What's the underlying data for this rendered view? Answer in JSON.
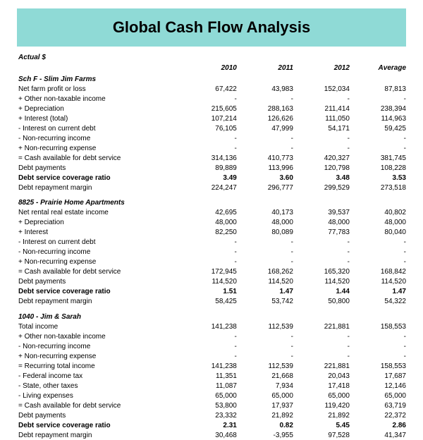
{
  "title": "Global  Cash Flow Analysis",
  "actual_label": "Actual $",
  "banner_bg": "#8fdad6",
  "columns": [
    "2010",
    "2011",
    "2012",
    "Average"
  ],
  "sections": [
    {
      "header": "Sch F - Slim Jim Farms",
      "rows": [
        {
          "label": "Net farm profit or loss",
          "vals": [
            "67,422",
            "43,983",
            "152,034",
            "87,813"
          ]
        },
        {
          "label": "+ Other non-taxable income",
          "vals": [
            "-",
            "-",
            "-",
            "-"
          ]
        },
        {
          "label": "+ Depreciation",
          "vals": [
            "215,605",
            "288,163",
            "211,414",
            "238,394"
          ]
        },
        {
          "label": "+ Interest (total)",
          "vals": [
            "107,214",
            "126,626",
            "111,050",
            "114,963"
          ]
        },
        {
          "label": "- Interest on current debt",
          "vals": [
            "76,105",
            "47,999",
            "54,171",
            "59,425"
          ]
        },
        {
          "label": "- Non-recurring income",
          "vals": [
            "-",
            "-",
            "-",
            "-"
          ]
        },
        {
          "label": "+ Non-recurring expense",
          "vals": [
            "-",
            "-",
            "-",
            "-"
          ]
        },
        {
          "label": "= Cash available for debt service",
          "vals": [
            "314,136",
            "410,773",
            "420,327",
            "381,745"
          ]
        },
        {
          "label": "Debt payments",
          "vals": [
            "89,889",
            "113,996",
            "120,798",
            "108,228"
          ]
        },
        {
          "label": "Debt service coverage ratio",
          "vals": [
            "3.49",
            "3.60",
            "3.48",
            "3.53"
          ],
          "bold": true
        },
        {
          "label": "Debt repayment margin",
          "vals": [
            "224,247",
            "296,777",
            "299,529",
            "273,518"
          ]
        }
      ]
    },
    {
      "header": "8825 - Prairie Home Apartments",
      "rows": [
        {
          "label": "Net rental real estate income",
          "vals": [
            "42,695",
            "40,173",
            "39,537",
            "40,802"
          ]
        },
        {
          "label": "+ Depreciation",
          "vals": [
            "48,000",
            "48,000",
            "48,000",
            "48,000"
          ]
        },
        {
          "label": "+ Interest",
          "vals": [
            "82,250",
            "80,089",
            "77,783",
            "80,040"
          ]
        },
        {
          "label": "- Interest on current debt",
          "vals": [
            "-",
            "-",
            "-",
            "-"
          ]
        },
        {
          "label": "- Non-recurring income",
          "vals": [
            "-",
            "-",
            "-",
            "-"
          ]
        },
        {
          "label": "+ Non-recurring expense",
          "vals": [
            "-",
            "-",
            "-",
            "-"
          ]
        },
        {
          "label": "= Cash available for debt service",
          "vals": [
            "172,945",
            "168,262",
            "165,320",
            "168,842"
          ]
        },
        {
          "label": "Debt payments",
          "vals": [
            "114,520",
            "114,520",
            "114,520",
            "114,520"
          ]
        },
        {
          "label": "Debt service coverage ratio",
          "vals": [
            "1.51",
            "1.47",
            "1.44",
            "1.47"
          ],
          "bold": true
        },
        {
          "label": "Debt repayment margin",
          "vals": [
            "58,425",
            "53,742",
            "50,800",
            "54,322"
          ]
        }
      ]
    },
    {
      "header": "1040 - Jim & Sarah",
      "rows": [
        {
          "label": "Total income",
          "vals": [
            "141,238",
            "112,539",
            "221,881",
            "158,553"
          ]
        },
        {
          "label": "+ Other non-taxable income",
          "vals": [
            "-",
            "-",
            "-",
            "-"
          ]
        },
        {
          "label": "- Non-recurring income",
          "vals": [
            "-",
            "-",
            "-",
            "-"
          ]
        },
        {
          "label": "+ Non-recurring expense",
          "vals": [
            "-",
            "-",
            "-",
            "-"
          ]
        },
        {
          "label": "= Recurring total income",
          "vals": [
            "141,238",
            "112,539",
            "221,881",
            "158,553"
          ]
        },
        {
          "label": "- Federal income tax",
          "vals": [
            "11,351",
            "21,668",
            "20,043",
            "17,687"
          ]
        },
        {
          "label": "- State, other taxes",
          "vals": [
            "11,087",
            "7,934",
            "17,418",
            "12,146"
          ]
        },
        {
          "label": "- Living expenses",
          "vals": [
            "65,000",
            "65,000",
            "65,000",
            "65,000"
          ]
        },
        {
          "label": "= Cash available for debt service",
          "vals": [
            "53,800",
            "17,937",
            "119,420",
            "63,719"
          ]
        },
        {
          "label": "Debt payments",
          "vals": [
            "23,332",
            "21,892",
            "21,892",
            "22,372"
          ]
        },
        {
          "label": "Debt service coverage ratio",
          "vals": [
            "2.31",
            "0.82",
            "5.45",
            "2.86"
          ],
          "bold": true
        },
        {
          "label": "Debt repayment margin",
          "vals": [
            "30,468",
            "-3,955",
            "97,528",
            "41,347"
          ]
        }
      ]
    }
  ]
}
